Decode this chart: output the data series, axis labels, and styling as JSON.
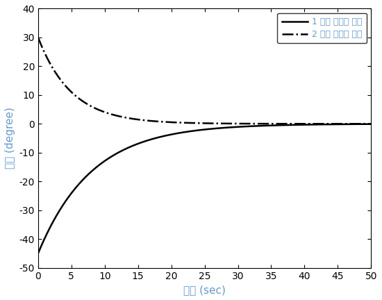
{
  "title": "",
  "xlabel": "시간 (sec)",
  "ylabel": "각도 (degree)",
  "xlim": [
    0,
    50
  ],
  "ylim": [
    -50,
    40
  ],
  "xticks": [
    0,
    5,
    10,
    15,
    20,
    25,
    30,
    35,
    40,
    45,
    50
  ],
  "yticks": [
    -50,
    -40,
    -30,
    -20,
    -10,
    0,
    10,
    20,
    30,
    40
  ],
  "joint1_label": "1 번째 관절의 각도",
  "joint2_label": "2 번째 관절의 각도",
  "joint1_init": -45,
  "joint2_init": 30,
  "time_constant1": 8.0,
  "time_constant2": 5.0,
  "line_color": "#000000",
  "background_color": "#ffffff",
  "label_color": "#6699cc",
  "legend_text_color": "#6699cc",
  "legend_fontsize": 9,
  "axis_label_fontsize": 11,
  "tick_fontsize": 10
}
